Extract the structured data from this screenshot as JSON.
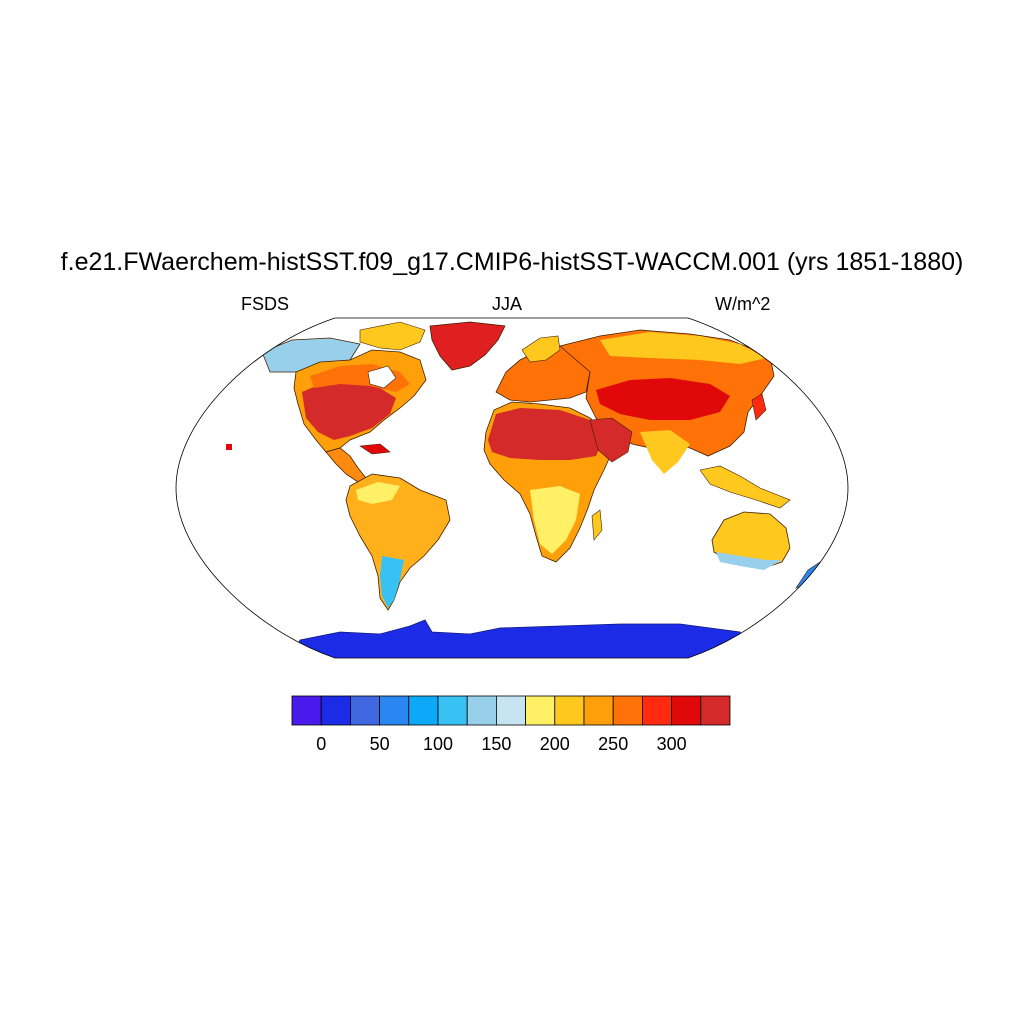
{
  "title": "f.e21.FWaerchem-histSST.f09_g17.CMIP6-histSST-WACCM.001 (yrs 1851-1880)",
  "left_label": "FSDS",
  "center_label": "JJA",
  "right_label": "W/m^2",
  "colorbar": {
    "tick_labels": [
      "0",
      "50",
      "100",
      "150",
      "200",
      "250",
      "300"
    ],
    "colors": [
      "#4a1aec",
      "#1c2ce6",
      "#3f68e0",
      "#2a86f0",
      "#0ea8f8",
      "#38c2f4",
      "#98d0ec",
      "#c6e4f2",
      "#fff066",
      "#ffc81e",
      "#ffa00a",
      "#ff7208",
      "#ff2a10",
      "#e00808",
      "#d42a2a"
    ]
  },
  "map": {
    "projection": "Robinson",
    "regions": [
      {
        "name": "Greenland",
        "color": "#e02020"
      },
      {
        "name": "North America",
        "color": "#e03028"
      },
      {
        "name": "Central America",
        "color": "#ff8a10"
      },
      {
        "name": "South America",
        "color": "#ffb01a"
      },
      {
        "name": "Europe",
        "color": "#ff7a10"
      },
      {
        "name": "Sahara and Middle East",
        "color": "#d42a2a"
      },
      {
        "name": "Central Africa",
        "color": "#ffa00a"
      },
      {
        "name": "Southern Africa",
        "color": "#ffc81e"
      },
      {
        "name": "Asia",
        "color": "#ff3a12"
      },
      {
        "name": "South Asia",
        "color": "#ffc81e"
      },
      {
        "name": "Australia",
        "color": "#ffc81e"
      },
      {
        "name": "Antarctica",
        "color": "#1c2ce6"
      }
    ]
  }
}
